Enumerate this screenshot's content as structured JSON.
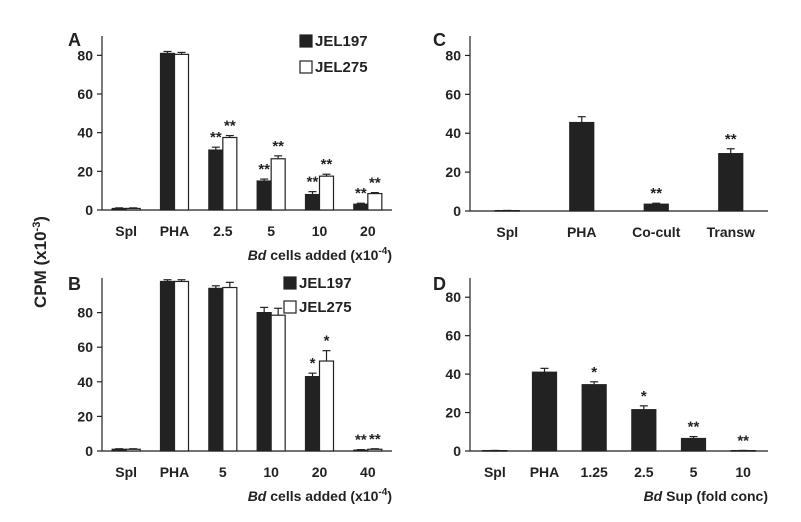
{
  "figure": {
    "ylabel_main": "CPM (x10",
    "ylabel_sup": "-3",
    "ylabel_end": ")"
  },
  "colors": {
    "series1": "#222222",
    "series2": "#ffffff",
    "stroke": "#222222"
  },
  "chart_data": [
    {
      "panel": "A",
      "type": "bar",
      "xlabel_italic": "Bd",
      "xlabel_rest": " cells added (x10",
      "xlabel_sup": "-4",
      "xlabel_end": ")",
      "categories": [
        "Spl",
        "PHA",
        "2.5",
        "5",
        "10",
        "20"
      ],
      "series": [
        {
          "name": "JEL197",
          "values": [
            0.8,
            81,
            31,
            15,
            8,
            3
          ],
          "errors": [
            0.3,
            1,
            1.5,
            1,
            1.5,
            0.5
          ]
        },
        {
          "name": "JEL275",
          "values": [
            0.8,
            80.5,
            37.5,
            26.5,
            17.5,
            8.5
          ],
          "errors": [
            0.3,
            1,
            1,
            1.5,
            1,
            0.5
          ]
        }
      ],
      "significance": [
        [
          "",
          ""
        ],
        [
          "",
          ""
        ],
        [
          "**",
          "**"
        ],
        [
          "**",
          "**"
        ],
        [
          "**",
          "**"
        ],
        [
          "**",
          "**"
        ]
      ],
      "yticks": [
        0,
        20,
        40,
        60,
        80
      ],
      "ylim": [
        0,
        90
      ],
      "legend": "top-right"
    },
    {
      "panel": "B",
      "type": "bar",
      "xlabel_italic": "Bd",
      "xlabel_rest": " cells added (x10",
      "xlabel_sup": "-4",
      "xlabel_end": ")",
      "categories": [
        "Spl",
        "PHA",
        "5",
        "10",
        "20",
        "40"
      ],
      "series": [
        {
          "name": "JEL197",
          "values": [
            1,
            98,
            94,
            80,
            43,
            0.5
          ],
          "errors": [
            0.3,
            1,
            1.5,
            3,
            2,
            0.3
          ]
        },
        {
          "name": "JEL275",
          "values": [
            1,
            98,
            94.5,
            78.5,
            52,
            1
          ],
          "errors": [
            0.3,
            1,
            3,
            4,
            6,
            0.3
          ]
        }
      ],
      "significance": [
        [
          "",
          ""
        ],
        [
          "",
          ""
        ],
        [
          "",
          ""
        ],
        [
          "",
          ""
        ],
        [
          "*",
          "*"
        ],
        [
          "**",
          "**"
        ]
      ],
      "yticks": [
        0,
        20,
        40,
        60,
        80
      ],
      "ylim": [
        0,
        100
      ],
      "legend": "top-right"
    },
    {
      "panel": "C",
      "type": "bar",
      "xlabel_italic": "",
      "xlabel_rest": "",
      "xlabel_sup": "",
      "xlabel_end": "",
      "categories": [
        "Spl",
        "PHA",
        "Co-cult",
        "Transw"
      ],
      "series": [
        {
          "values": [
            0.2,
            45.5,
            3.5,
            29.5
          ],
          "errors": [
            0.1,
            3,
            0.5,
            2.5
          ]
        }
      ],
      "significance": [
        [
          ""
        ],
        [
          ""
        ],
        [
          "**"
        ],
        [
          "**"
        ]
      ],
      "yticks": [
        0,
        20,
        40,
        60,
        80
      ],
      "ylim": [
        0,
        90
      ],
      "legend": "none"
    },
    {
      "panel": "D",
      "type": "bar",
      "xlabel_italic": "Bd",
      "xlabel_rest": " Sup (fold conc)",
      "xlabel_sup": "",
      "xlabel_end": "",
      "categories": [
        "Spl",
        "PHA",
        "1.25",
        "2.5",
        "5",
        "10"
      ],
      "series": [
        {
          "values": [
            0.2,
            41,
            34.5,
            21.5,
            6.5,
            0.2
          ],
          "errors": [
            0.1,
            2,
            1.5,
            2,
            1,
            0.1
          ]
        }
      ],
      "significance": [
        [
          ""
        ],
        [
          ""
        ],
        [
          "*"
        ],
        [
          "*"
        ],
        [
          "**"
        ],
        [
          "**"
        ]
      ],
      "yticks": [
        0,
        20,
        40,
        60,
        80
      ],
      "ylim": [
        0,
        90
      ],
      "legend": "none"
    }
  ]
}
